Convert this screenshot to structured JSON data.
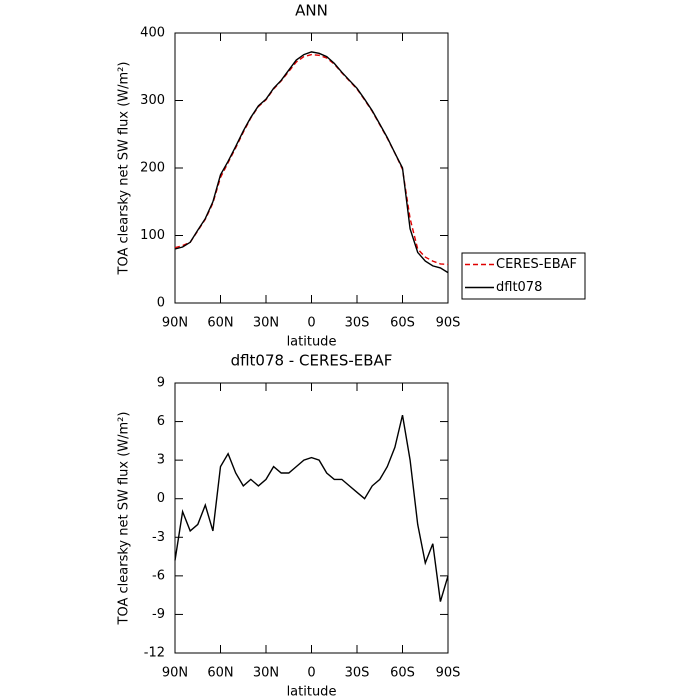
{
  "chart_data": [
    {
      "type": "line",
      "title": "ANN",
      "x_label": "latitude",
      "y_label": "TOA clearsky net SW flux (W/m²)",
      "x": [
        90,
        85,
        80,
        75,
        70,
        65,
        60,
        55,
        50,
        45,
        40,
        35,
        30,
        25,
        20,
        15,
        10,
        5,
        0,
        -5,
        -10,
        -15,
        -20,
        -25,
        -30,
        -35,
        -40,
        -45,
        -50,
        -55,
        -60,
        -65,
        -70,
        -75,
        -80,
        -85,
        -90
      ],
      "series": [
        {
          "name": "CERES-EBAF",
          "color": "#e00000",
          "dashed": true,
          "values": [
            82,
            85,
            90,
            107,
            124,
            148,
            186,
            208,
            230,
            253,
            274,
            291,
            301,
            317,
            329,
            343,
            357,
            365,
            368,
            367,
            363,
            354,
            341,
            329,
            317,
            301,
            284,
            264,
            244,
            222,
            198,
            125,
            80,
            68,
            62,
            58,
            57
          ]
        },
        {
          "name": "dflt078",
          "color": "#000000",
          "dashed": false,
          "values": [
            80,
            83,
            90,
            108,
            125,
            150,
            190,
            210,
            232,
            255,
            275,
            292,
            302,
            318,
            330,
            345,
            360,
            368,
            372,
            370,
            365,
            355,
            342,
            330,
            318,
            302,
            285,
            265,
            245,
            222,
            200,
            110,
            75,
            62,
            55,
            52,
            45
          ]
        }
      ],
      "xlim": [
        90,
        -90
      ],
      "xticks": [
        {
          "value": 90,
          "label": "90N"
        },
        {
          "value": 60,
          "label": "60N"
        },
        {
          "value": 30,
          "label": "30N"
        },
        0,
        {
          "value": -30,
          "label": "30S"
        },
        {
          "value": -60,
          "label": "60S"
        },
        {
          "value": -90,
          "label": "90S"
        }
      ],
      "ylim": [
        0,
        400
      ],
      "yticks": [
        0,
        100,
        200,
        300,
        400
      ],
      "legend": "right"
    },
    {
      "type": "line",
      "title": "dflt078 - CERES-EBAF",
      "x_label": "latitude",
      "y_label": "TOA clearsky net SW flux (W/m²)",
      "x": [
        90,
        85,
        80,
        75,
        70,
        65,
        60,
        55,
        50,
        45,
        40,
        35,
        30,
        25,
        20,
        15,
        10,
        5,
        0,
        -5,
        -10,
        -15,
        -20,
        -25,
        -30,
        -35,
        -40,
        -45,
        -50,
        -55,
        -60,
        -65,
        -70,
        -75,
        -80,
        -85,
        -90
      ],
      "color": "#000000",
      "values": [
        -4.8,
        -1,
        -2.5,
        -2,
        -0.5,
        -2.5,
        2.5,
        3.5,
        2,
        1,
        1.5,
        1,
        1.5,
        2.5,
        2,
        2,
        2.5,
        3,
        3.2,
        3,
        2,
        1.5,
        1.5,
        1,
        0.5,
        0,
        1,
        1.5,
        2.5,
        4,
        6.5,
        3,
        -2,
        -5,
        -3.5,
        -8,
        -6
      ],
      "xlim": [
        90,
        -90
      ],
      "xticks": [
        {
          "value": 90,
          "label": "90N"
        },
        {
          "value": 60,
          "label": "60N"
        },
        {
          "value": 30,
          "label": "30N"
        },
        0,
        {
          "value": -30,
          "label": "30S"
        },
        {
          "value": -60,
          "label": "60S"
        },
        {
          "value": -90,
          "label": "90S"
        }
      ],
      "ylim": [
        -12,
        9
      ],
      "yticks": [
        -12,
        -9,
        -6,
        -3,
        0,
        3,
        6,
        9
      ]
    }
  ]
}
